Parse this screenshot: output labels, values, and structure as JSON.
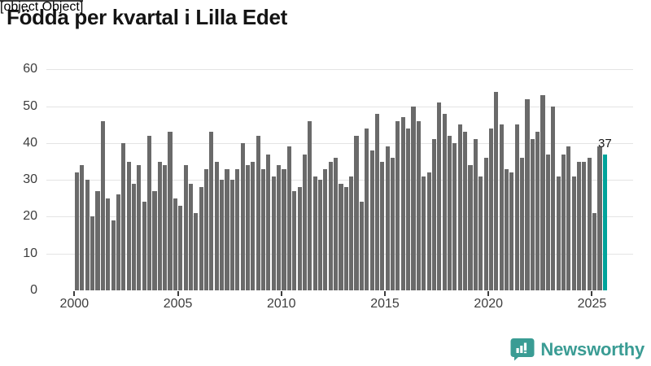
{
  "title": "Födda per kvartal i Lilla Edet",
  "chart_data": {
    "type": "bar",
    "title": "Födda per kvartal i Lilla Edet",
    "unit": "births per quarter",
    "x_range": "2000Q1–2025Q3",
    "ylim": [
      0,
      60
    ],
    "yticks": [
      0,
      10,
      20,
      30,
      40,
      50,
      60
    ],
    "xticks": [
      2000,
      2005,
      2010,
      2015,
      2020,
      2025
    ],
    "grid": true,
    "bar_color": "#6a6a6a",
    "highlight_color": "#00a39a",
    "series": [
      {
        "year": 2000,
        "values": [
          32,
          34,
          30,
          20
        ]
      },
      {
        "year": 2001,
        "values": [
          27,
          46,
          25,
          19
        ]
      },
      {
        "year": 2002,
        "values": [
          26,
          40,
          35,
          29
        ]
      },
      {
        "year": 2003,
        "values": [
          34,
          24,
          42,
          27
        ]
      },
      {
        "year": 2004,
        "values": [
          35,
          34,
          43,
          25
        ]
      },
      {
        "year": 2005,
        "values": [
          23,
          34,
          29,
          21
        ]
      },
      {
        "year": 2006,
        "values": [
          28,
          33,
          43,
          35
        ]
      },
      {
        "year": 2007,
        "values": [
          30,
          33,
          30,
          33
        ]
      },
      {
        "year": 2008,
        "values": [
          40,
          34,
          35,
          42
        ]
      },
      {
        "year": 2009,
        "values": [
          33,
          37,
          31,
          34
        ]
      },
      {
        "year": 2010,
        "values": [
          33,
          39,
          27,
          28
        ]
      },
      {
        "year": 2011,
        "values": [
          37,
          46,
          31,
          30
        ]
      },
      {
        "year": 2012,
        "values": [
          33,
          35,
          36,
          29
        ]
      },
      {
        "year": 2013,
        "values": [
          28,
          31,
          42,
          24
        ]
      },
      {
        "year": 2014,
        "values": [
          44,
          38,
          48,
          35
        ]
      },
      {
        "year": 2015,
        "values": [
          39,
          36,
          46,
          47
        ]
      },
      {
        "year": 2016,
        "values": [
          44,
          50,
          46,
          31
        ]
      },
      {
        "year": 2017,
        "values": [
          32,
          41,
          51,
          48
        ]
      },
      {
        "year": 2018,
        "values": [
          42,
          40,
          45,
          43
        ]
      },
      {
        "year": 2019,
        "values": [
          34,
          41,
          31,
          36
        ]
      },
      {
        "year": 2020,
        "values": [
          44,
          54,
          45,
          33
        ]
      },
      {
        "year": 2021,
        "values": [
          32,
          45,
          36,
          52
        ]
      },
      {
        "year": 2022,
        "values": [
          41,
          43,
          53,
          37
        ]
      },
      {
        "year": 2023,
        "values": [
          50,
          31,
          37,
          39
        ]
      },
      {
        "year": 2024,
        "values": [
          31,
          35,
          35,
          36
        ]
      },
      {
        "year": 2025,
        "values": [
          21,
          39,
          37
        ]
      }
    ],
    "highlight_last_bar": true,
    "last_value_label": "37"
  },
  "branding": {
    "logo_text": "Newsworthy",
    "logo_color": "#3a9c94",
    "logo_icon": "bar-chart-speech-bubble"
  }
}
